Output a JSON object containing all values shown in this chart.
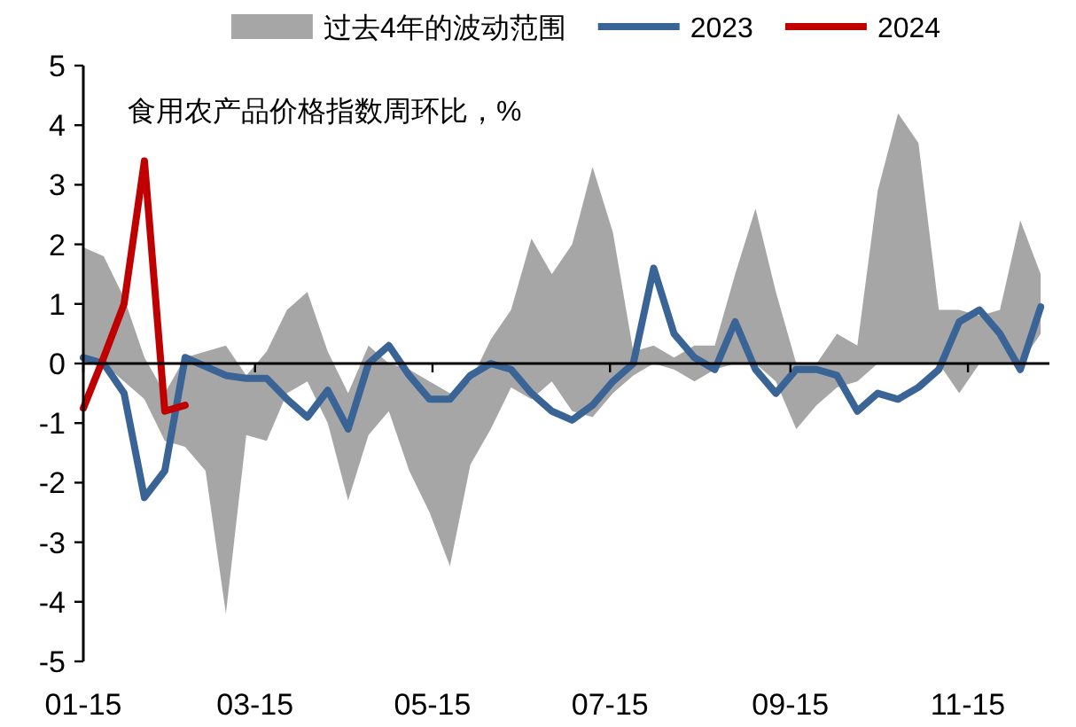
{
  "chart_data": {
    "type": "line",
    "annotations": [
      "食用农产品价格指数周环比，%"
    ],
    "x": [
      "--01-15",
      "--01-22",
      "--01-29",
      "--02-05",
      "--02-12",
      "--02-19",
      "--02-26",
      "--03-05",
      "--03-12",
      "--03-19",
      "--03-26",
      "--04-02",
      "--04-09",
      "--04-16",
      "--04-23",
      "--04-30",
      "--05-07",
      "--05-14",
      "--05-21",
      "--05-28",
      "--06-04",
      "--06-11",
      "--06-18",
      "--06-25",
      "--07-02",
      "--07-09",
      "--07-16",
      "--07-23",
      "--07-30",
      "--08-06",
      "--08-13",
      "--08-20",
      "--08-27",
      "--09-03",
      "--09-10",
      "--09-17",
      "--09-24",
      "--10-01",
      "--10-08",
      "--10-15",
      "--10-22",
      "--10-29",
      "--11-05",
      "--11-12",
      "--11-19",
      "--11-26",
      "--12-03",
      "--12-10"
    ],
    "series": [
      {
        "name": "过去4年的波动范围",
        "type": "area",
        "color": "#a6a6a6",
        "values": [
          null,
          null,
          null,
          null,
          null,
          null,
          null,
          null,
          null,
          null,
          null,
          null,
          null,
          null,
          null,
          null,
          null,
          null,
          null,
          null,
          null,
          null,
          null,
          null,
          null,
          null,
          null,
          null,
          null,
          null,
          null,
          null,
          null,
          null,
          null,
          null,
          null,
          null,
          null,
          null,
          null,
          null,
          null,
          null,
          null,
          null,
          null,
          null
        ],
        "upper": [
          1.95,
          1.8,
          1.1,
          0.1,
          -0.5,
          0.1,
          0.2,
          0.3,
          -0.2,
          0.2,
          0.9,
          1.2,
          0.2,
          -0.5,
          0.3,
          0,
          -0.1,
          -0.3,
          -0.5,
          -0.3,
          0.4,
          0.9,
          2.1,
          1.5,
          2.0,
          3.3,
          2.2,
          0.2,
          0.3,
          0.1,
          0.3,
          0.3,
          1.5,
          2.6,
          1.2,
          0,
          0,
          0.5,
          0.3,
          2.9,
          4.2,
          3.7,
          0.9,
          0.9,
          0.8,
          0.9,
          2.4,
          1.5
        ],
        "lower": [
          0,
          0,
          -0.3,
          -0.6,
          -1.3,
          -1.4,
          -1.8,
          -4.2,
          -1.2,
          -1.3,
          -0.5,
          -0.3,
          -1.0,
          -2.3,
          -1.2,
          -0.8,
          -1.8,
          -2.5,
          -3.4,
          -1.7,
          -1.1,
          -0.4,
          -0.6,
          -0.3,
          -0.8,
          -0.9,
          -0.5,
          -0.2,
          0,
          -0.1,
          -0.3,
          -0.1,
          0,
          0,
          -0.3,
          -1.1,
          -0.7,
          -0.4,
          -0.3,
          0,
          0,
          0,
          0,
          -0.5,
          0,
          0,
          0,
          0.5
        ]
      },
      {
        "name": "2023",
        "type": "line",
        "color": "#3a6496",
        "values": [
          0.1,
          0,
          -0.5,
          -2.25,
          -1.8,
          0.1,
          -0.05,
          -0.2,
          -0.25,
          -0.25,
          -0.6,
          -0.9,
          -0.45,
          -1.1,
          0,
          0.3,
          -0.2,
          -0.6,
          -0.6,
          -0.2,
          0,
          -0.1,
          -0.5,
          -0.8,
          -0.95,
          -0.7,
          -0.3,
          0,
          1.6,
          0.5,
          0.1,
          -0.1,
          0.7,
          -0.1,
          -0.5,
          -0.1,
          -0.1,
          -0.2,
          -0.8,
          -0.5,
          -0.6,
          -0.4,
          -0.1,
          0.7,
          0.9,
          0.5,
          -0.1,
          0.95
        ]
      },
      {
        "name": "2024",
        "type": "line",
        "color": "#c00000",
        "x": [
          "--01-15",
          "--01-22",
          "--01-29",
          "--02-05",
          "--02-12",
          "--02-19"
        ],
        "values": [
          -0.75,
          0.1,
          1.0,
          3.4,
          -0.8,
          -0.7
        ]
      }
    ],
    "xlim": [
      "--01-15",
      "--12-13"
    ],
    "xticks": [
      {
        "value": "--01-15",
        "label": "01-15"
      },
      {
        "value": "--03-15",
        "label": "03-15"
      },
      {
        "value": "--05-15",
        "label": "05-15"
      },
      {
        "value": "--07-15",
        "label": "07-15"
      },
      {
        "value": "--09-15",
        "label": "09-15"
      },
      {
        "value": "--11-15",
        "label": "11-15"
      }
    ],
    "ylim": [
      -5,
      5
    ],
    "yticks": [
      -5,
      -4,
      -3,
      -2,
      -1,
      0,
      1,
      2,
      3,
      4,
      5
    ],
    "legend": "top"
  }
}
